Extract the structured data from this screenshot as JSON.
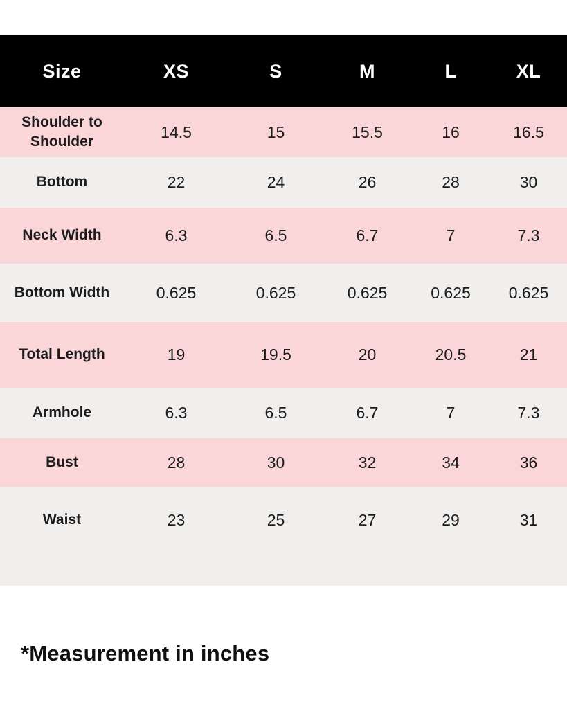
{
  "table": {
    "header": {
      "label": "Size",
      "sizes": [
        "XS",
        "S",
        "M",
        "L",
        "XL"
      ]
    },
    "rows": [
      {
        "label": "Shoulder to Shoulder",
        "values": [
          "14.5",
          "15",
          "15.5",
          "16",
          "16.5"
        ]
      },
      {
        "label": "Bottom",
        "values": [
          "22",
          "24",
          "26",
          "28",
          "30"
        ]
      },
      {
        "label": "Neck Width",
        "values": [
          "6.3",
          "6.5",
          "6.7",
          "7",
          "7.3"
        ]
      },
      {
        "label": "Bottom Width",
        "values": [
          "0.625",
          "0.625",
          "0.625",
          "0.625",
          "0.625"
        ]
      },
      {
        "label": "Total Length",
        "values": [
          "19",
          "19.5",
          "20",
          "20.5",
          "21"
        ]
      },
      {
        "label": "Armhole",
        "values": [
          "6.3",
          "6.5",
          "6.7",
          "7",
          "7.3"
        ]
      },
      {
        "label": "Bust",
        "values": [
          "28",
          "30",
          "32",
          "34",
          "36"
        ]
      },
      {
        "label": "Waist",
        "values": [
          "23",
          "25",
          "27",
          "29",
          "31"
        ]
      }
    ]
  },
  "footnote": "*Measurement in inches",
  "colors": {
    "header_bg": "#000000",
    "header_text": "#ffffff",
    "row_pink": "#fad6d9",
    "row_gray": "#f1efee",
    "text": "#1c1c1c"
  }
}
